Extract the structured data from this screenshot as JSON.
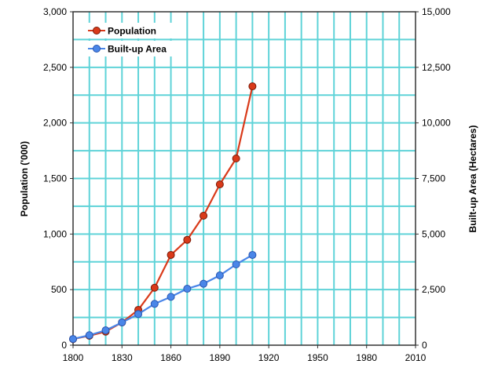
{
  "chart_data": {
    "type": "line",
    "title": "",
    "xlabel": "",
    "ylabel": "Population ('000)",
    "y2label": "Built-up Area (Hectares)",
    "xlim": [
      1800,
      2010
    ],
    "ylim": [
      0,
      3000
    ],
    "y2lim": [
      0,
      15000
    ],
    "grid": true,
    "grid_color": "#5fd3d8",
    "legend_position": "top-left",
    "x_ticks": [
      "1800",
      "1830",
      "1860",
      "1890",
      "1920",
      "1950",
      "1980",
      "2010"
    ],
    "y_ticks": [
      "0",
      "500",
      "1,000",
      "1,500",
      "2,000",
      "2,500",
      "3,000"
    ],
    "y2_ticks": [
      "0",
      "2,500",
      "5,000",
      "7,500",
      "10,000",
      "12,500",
      "15,000"
    ],
    "x": [
      1800,
      1810,
      1820,
      1830,
      1840,
      1850,
      1860,
      1870,
      1880,
      1890,
      1900,
      1910
    ],
    "series": [
      {
        "name": "Population",
        "axis": "left",
        "color": "#d93a1a",
        "values": [
          55,
          85,
          122,
          205,
          318,
          517,
          812,
          948,
          1165,
          1447,
          1680,
          2329
        ]
      },
      {
        "name": "Built-up Area",
        "axis": "right",
        "color": "#4a86e8",
        "values": [
          280,
          450,
          670,
          1025,
          1400,
          1860,
          2175,
          2540,
          2765,
          3140,
          3635,
          4060
        ]
      }
    ]
  }
}
